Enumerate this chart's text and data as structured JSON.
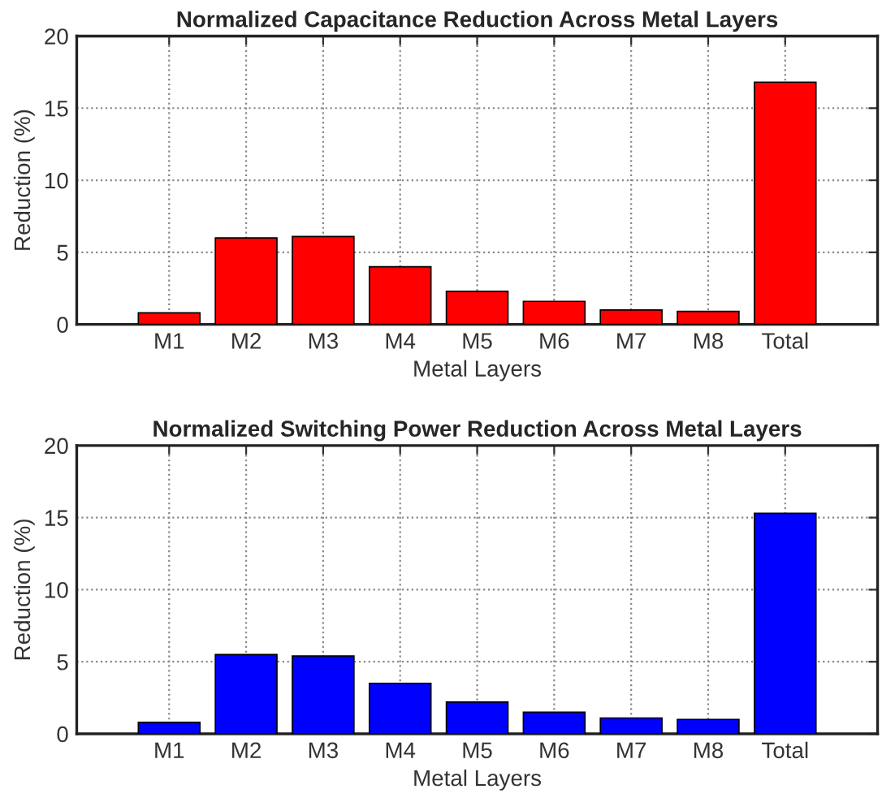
{
  "chart_data": [
    {
      "type": "bar",
      "title": "Normalized Capacitance Reduction Across Metal Layers",
      "xlabel": "Metal Layers",
      "ylabel": "Reduction (%)",
      "categories": [
        "M1",
        "M2",
        "M3",
        "M4",
        "M5",
        "M6",
        "M7",
        "M8",
        "Total"
      ],
      "values": [
        0.8,
        6.0,
        6.1,
        4.0,
        2.3,
        1.6,
        1.0,
        0.9,
        16.8
      ],
      "color": "#ff0000",
      "ylim": [
        0,
        20
      ],
      "yticks": [
        0,
        5,
        10,
        15,
        20
      ],
      "grid": true
    },
    {
      "type": "bar",
      "title": "Normalized Switching Power Reduction Across Metal Layers",
      "xlabel": "Metal Layers",
      "ylabel": "Reduction (%)",
      "categories": [
        "M1",
        "M2",
        "M3",
        "M4",
        "M5",
        "M6",
        "M7",
        "M8",
        "Total"
      ],
      "values": [
        0.8,
        5.5,
        5.4,
        3.5,
        2.2,
        1.5,
        1.1,
        1.0,
        15.3
      ],
      "color": "#0000ff",
      "ylim": [
        0,
        20
      ],
      "yticks": [
        0,
        5,
        10,
        15,
        20
      ],
      "grid": true
    }
  ]
}
